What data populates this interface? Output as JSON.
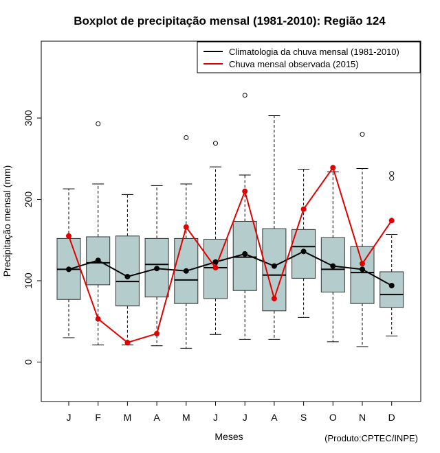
{
  "chart_data": {
    "type": "boxplot",
    "title": "Boxplot de precipitação mensal (1981-2010): Região 124",
    "xlabel": "Meses",
    "ylabel": "Precipitação mensal (mm)",
    "source": "(Produto:CPTEC/INPE)",
    "ylim": [
      -50,
      395
    ],
    "yticks": [
      0,
      100,
      200,
      300
    ],
    "categories": [
      "J",
      "F",
      "M",
      "A",
      "M",
      "J",
      "J",
      "A",
      "S",
      "O",
      "N",
      "D"
    ],
    "boxes": [
      {
        "min": 30,
        "q1": 77,
        "median": 114,
        "q3": 152,
        "max": 213,
        "outliers": []
      },
      {
        "min": 21,
        "q1": 95,
        "median": 122,
        "q3": 154,
        "max": 219,
        "outliers": [
          293
        ]
      },
      {
        "min": 21,
        "q1": 69,
        "median": 99,
        "q3": 155,
        "max": 206,
        "outliers": []
      },
      {
        "min": 20,
        "q1": 80,
        "median": 120,
        "q3": 152,
        "max": 217,
        "outliers": []
      },
      {
        "min": 17,
        "q1": 72,
        "median": 101,
        "q3": 152,
        "max": 219,
        "outliers": [
          276
        ]
      },
      {
        "min": 34,
        "q1": 78,
        "median": 116,
        "q3": 151,
        "max": 240,
        "outliers": [
          269
        ]
      },
      {
        "min": 28,
        "q1": 88,
        "median": 129,
        "q3": 173,
        "max": 230,
        "outliers": [
          328
        ]
      },
      {
        "min": 28,
        "q1": 63,
        "median": 107,
        "q3": 164,
        "max": 303,
        "outliers": []
      },
      {
        "min": 55,
        "q1": 103,
        "median": 142,
        "q3": 163,
        "max": 237,
        "outliers": []
      },
      {
        "min": 25,
        "q1": 86,
        "median": 114,
        "q3": 153,
        "max": 234,
        "outliers": []
      },
      {
        "min": 19,
        "q1": 72,
        "median": 110,
        "q3": 142,
        "max": 238,
        "outliers": [
          280
        ]
      },
      {
        "min": 32,
        "q1": 67,
        "median": 83,
        "q3": 111,
        "max": 157,
        "outliers": [
          226,
          232
        ]
      }
    ],
    "series": [
      {
        "name": "Climatologia da chuva mensal (1981-2010)",
        "color": "#000000",
        "values": [
          114,
          125,
          105,
          115,
          112,
          123,
          133,
          118,
          136,
          118,
          114,
          94
        ]
      },
      {
        "name": "Chuva mensal observada (2015)",
        "color": "#e00000",
        "values": [
          155,
          53,
          24,
          35,
          166,
          116,
          210,
          78,
          188,
          239,
          121,
          174
        ]
      }
    ],
    "box_fill": "#b4cccc",
    "legend_position": "top-right"
  }
}
